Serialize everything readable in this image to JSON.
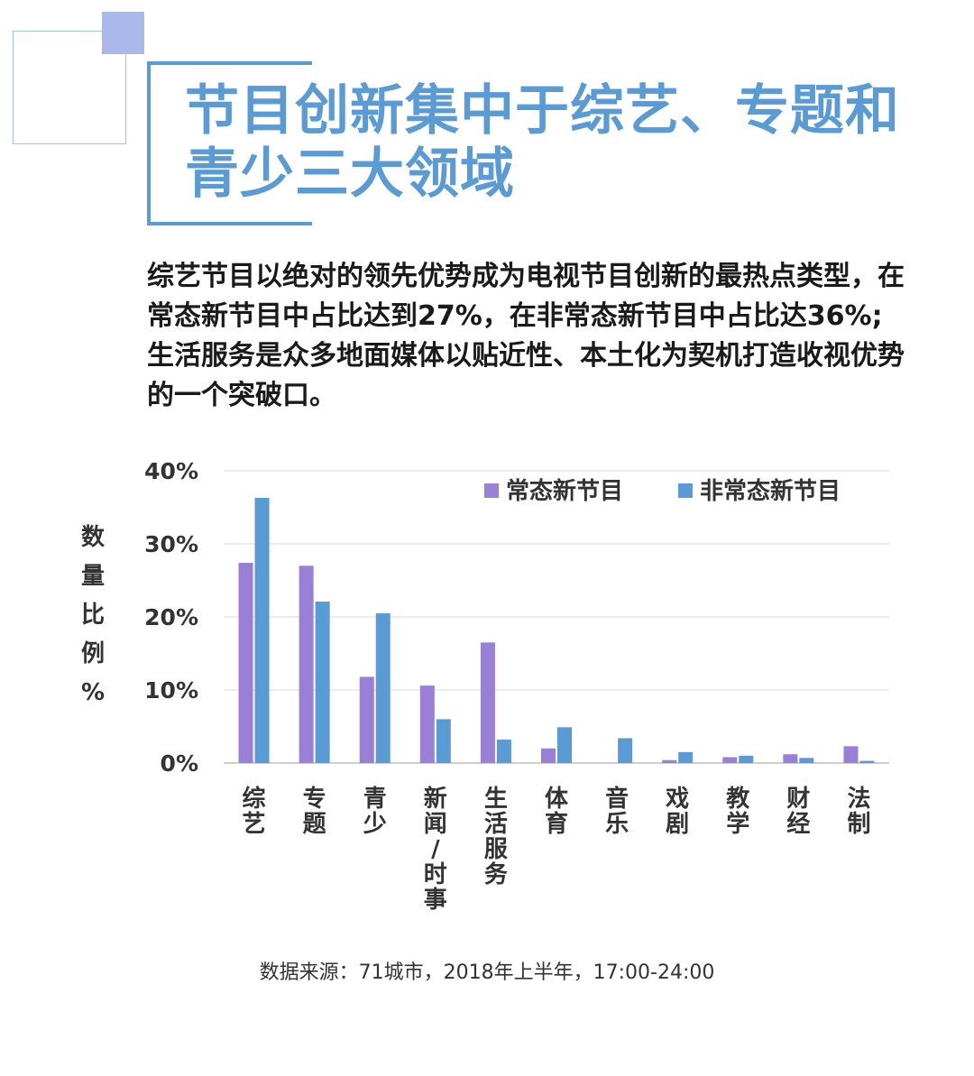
{
  "title": "节目创新集中于综艺、专题和青少三大领域",
  "summary": "综艺节目以绝对的领先优势成为电视节目创新的最热点类型，在常态新节目中占比达到27%，在非常态新节目中占比达36%;生活服务是众多地面媒体以贴近性、本土化为契机打造收视优势的一个突破口。",
  "source": "数据来源：71城市，2018年上半年，17:00-24:00",
  "colors": {
    "accent": "#5b9bd5",
    "series_regular": "#9a7fd6",
    "series_irregular": "#5b9bd5",
    "deco_fill": "#a9b8ea"
  },
  "chart_data": {
    "type": "bar",
    "ylabel": "数量比例%",
    "ylim": [
      0,
      40
    ],
    "yticks": [
      "0%",
      "10%",
      "20%",
      "30%",
      "40%"
    ],
    "grid": true,
    "legend_position": "top-right",
    "categories": [
      "综艺",
      "专题",
      "青少",
      "新闻/时事",
      "生活服务",
      "体育",
      "音乐",
      "戏剧",
      "教学",
      "财经",
      "法制"
    ],
    "series": [
      {
        "name": "常态新节目",
        "values": [
          27.4,
          27.0,
          11.8,
          10.6,
          16.5,
          2.0,
          0,
          0.4,
          0.8,
          1.2,
          2.3
        ]
      },
      {
        "name": "非常态新节目",
        "values": [
          36.3,
          22.1,
          20.5,
          6.0,
          3.2,
          4.9,
          3.4,
          1.5,
          1.0,
          0.7,
          0.3
        ]
      }
    ]
  }
}
